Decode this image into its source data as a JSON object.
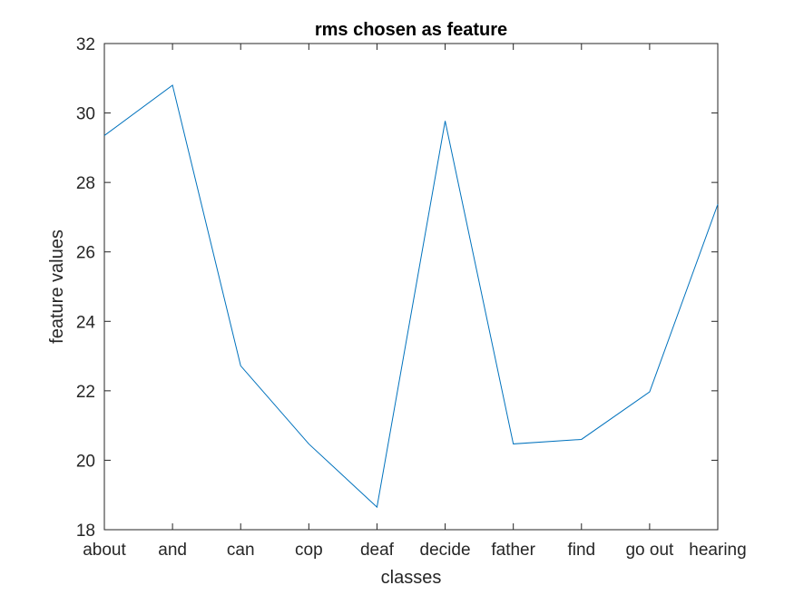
{
  "chart_data": {
    "type": "line",
    "title": "rms chosen as feature",
    "xlabel": "classes",
    "ylabel": "feature values",
    "categories": [
      "about",
      "and",
      "can",
      "cop",
      "deaf",
      "decide",
      "father",
      "find",
      "go out",
      "hearing"
    ],
    "series": [
      {
        "values": [
          29.35,
          30.8,
          22.72,
          20.47,
          18.65,
          29.77,
          20.47,
          20.6,
          21.97,
          27.37
        ]
      }
    ],
    "ylim": [
      18,
      32
    ],
    "yticks": [
      18,
      20,
      22,
      24,
      26,
      28,
      30,
      32
    ],
    "grid": false,
    "legend": "none",
    "colors": {
      "line": "#0072BD",
      "axes": "#262626",
      "background": "#ffffff"
    }
  }
}
